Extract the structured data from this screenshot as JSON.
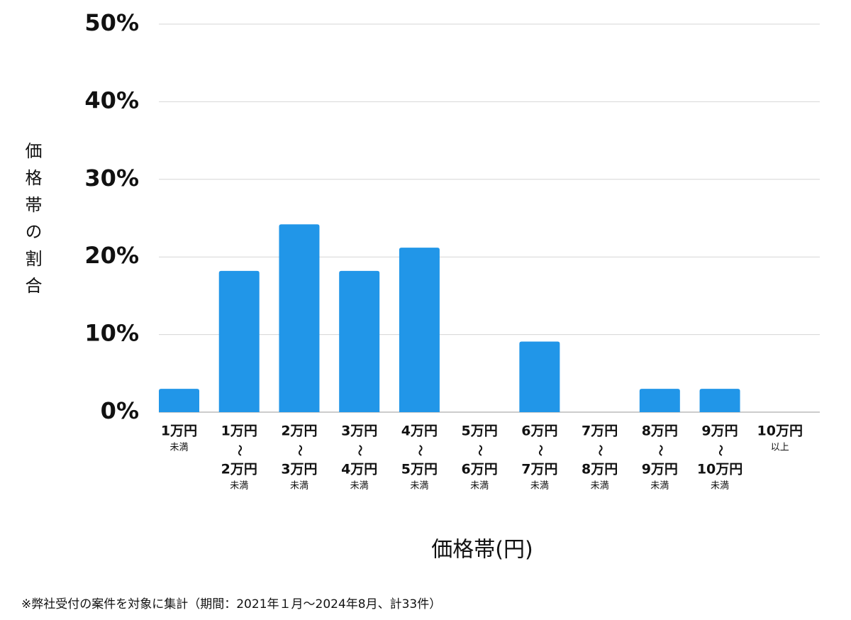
{
  "chart_data": {
    "type": "bar",
    "y_label": "価格帯の割合",
    "x_label": "価格帯(円)",
    "footnote": "※弊社受付の案件を対象に集計（期間：2021年１月～2024年8月、計33件）",
    "categories": [
      [
        "1万円",
        "未満"
      ],
      [
        "1万円",
        "〜",
        "2万円",
        "未満"
      ],
      [
        "2万円",
        "〜",
        "3万円",
        "未満"
      ],
      [
        "3万円",
        "〜",
        "4万円",
        "未満"
      ],
      [
        "4万円",
        "〜",
        "5万円",
        "未満"
      ],
      [
        "5万円",
        "〜",
        "6万円",
        "未満"
      ],
      [
        "6万円",
        "〜",
        "7万円",
        "未満"
      ],
      [
        "7万円",
        "〜",
        "8万円",
        "未満"
      ],
      [
        "8万円",
        "〜",
        "9万円",
        "未満"
      ],
      [
        "9万円",
        "〜",
        "10万円",
        "未満"
      ],
      [
        "10万円",
        "以上"
      ]
    ],
    "values": [
      3.0,
      18.2,
      24.2,
      18.2,
      21.2,
      0,
      9.1,
      0,
      3.0,
      3.0,
      0
    ],
    "color": "#2196e8",
    "ylim": [
      0,
      50
    ],
    "yticks": [
      {
        "value": 0,
        "label": "0%"
      },
      {
        "value": 10,
        "label": "10%"
      },
      {
        "value": 20,
        "label": "20%"
      },
      {
        "value": 30,
        "label": "30%"
      },
      {
        "value": 40,
        "label": "40%"
      },
      {
        "value": 50,
        "label": "50%"
      }
    ],
    "grid": true
  }
}
